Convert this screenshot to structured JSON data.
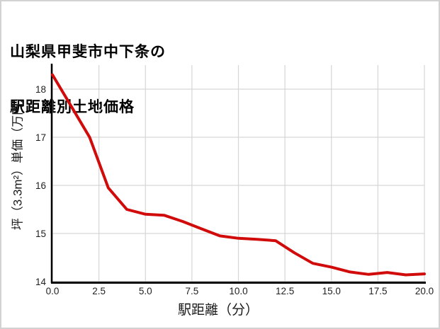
{
  "chart_data": {
    "type": "line",
    "title": "山梨県甲斐市中下条の駅距離別土地価格",
    "title_lines": [
      "山梨県甲斐市中下条の",
      "駅距離別土地価格"
    ],
    "xlabel": "駅距離（分）",
    "ylabel": "坪（3.3m²）単価（万円）",
    "x": [
      0,
      1,
      2,
      3,
      4,
      5,
      6,
      7,
      8,
      9,
      10,
      11,
      12,
      13,
      14,
      15,
      16,
      17,
      18,
      19,
      20
    ],
    "y": [
      18.3,
      17.65,
      17.0,
      15.95,
      15.5,
      15.4,
      15.38,
      15.25,
      15.1,
      14.95,
      14.9,
      14.88,
      14.85,
      14.6,
      14.38,
      14.3,
      14.2,
      14.15,
      14.19,
      14.14,
      14.16
    ],
    "series_name": "土地価格",
    "xlim": [
      0,
      20
    ],
    "ylim": [
      14,
      18.5
    ],
    "xtick_values": [
      0,
      2.5,
      5,
      7.5,
      10,
      12.5,
      15,
      17.5,
      20
    ],
    "xtick_labels": [
      "0.0",
      "2.5",
      "5.0",
      "7.5",
      "10.0",
      "12.5",
      "15.0",
      "17.5",
      "20.0"
    ],
    "ytick_values": [
      14,
      15,
      16,
      17,
      18
    ],
    "ytick_labels": [
      "14",
      "15",
      "16",
      "17",
      "18"
    ],
    "grid": true,
    "legend": "none",
    "colors": {
      "line": "#d10a0a",
      "grid": "#d6d6d6",
      "spine": "#000000",
      "tick_text": "#1f1f1f",
      "background": "#ffffff",
      "frame_border": "#d2d2d2"
    }
  }
}
